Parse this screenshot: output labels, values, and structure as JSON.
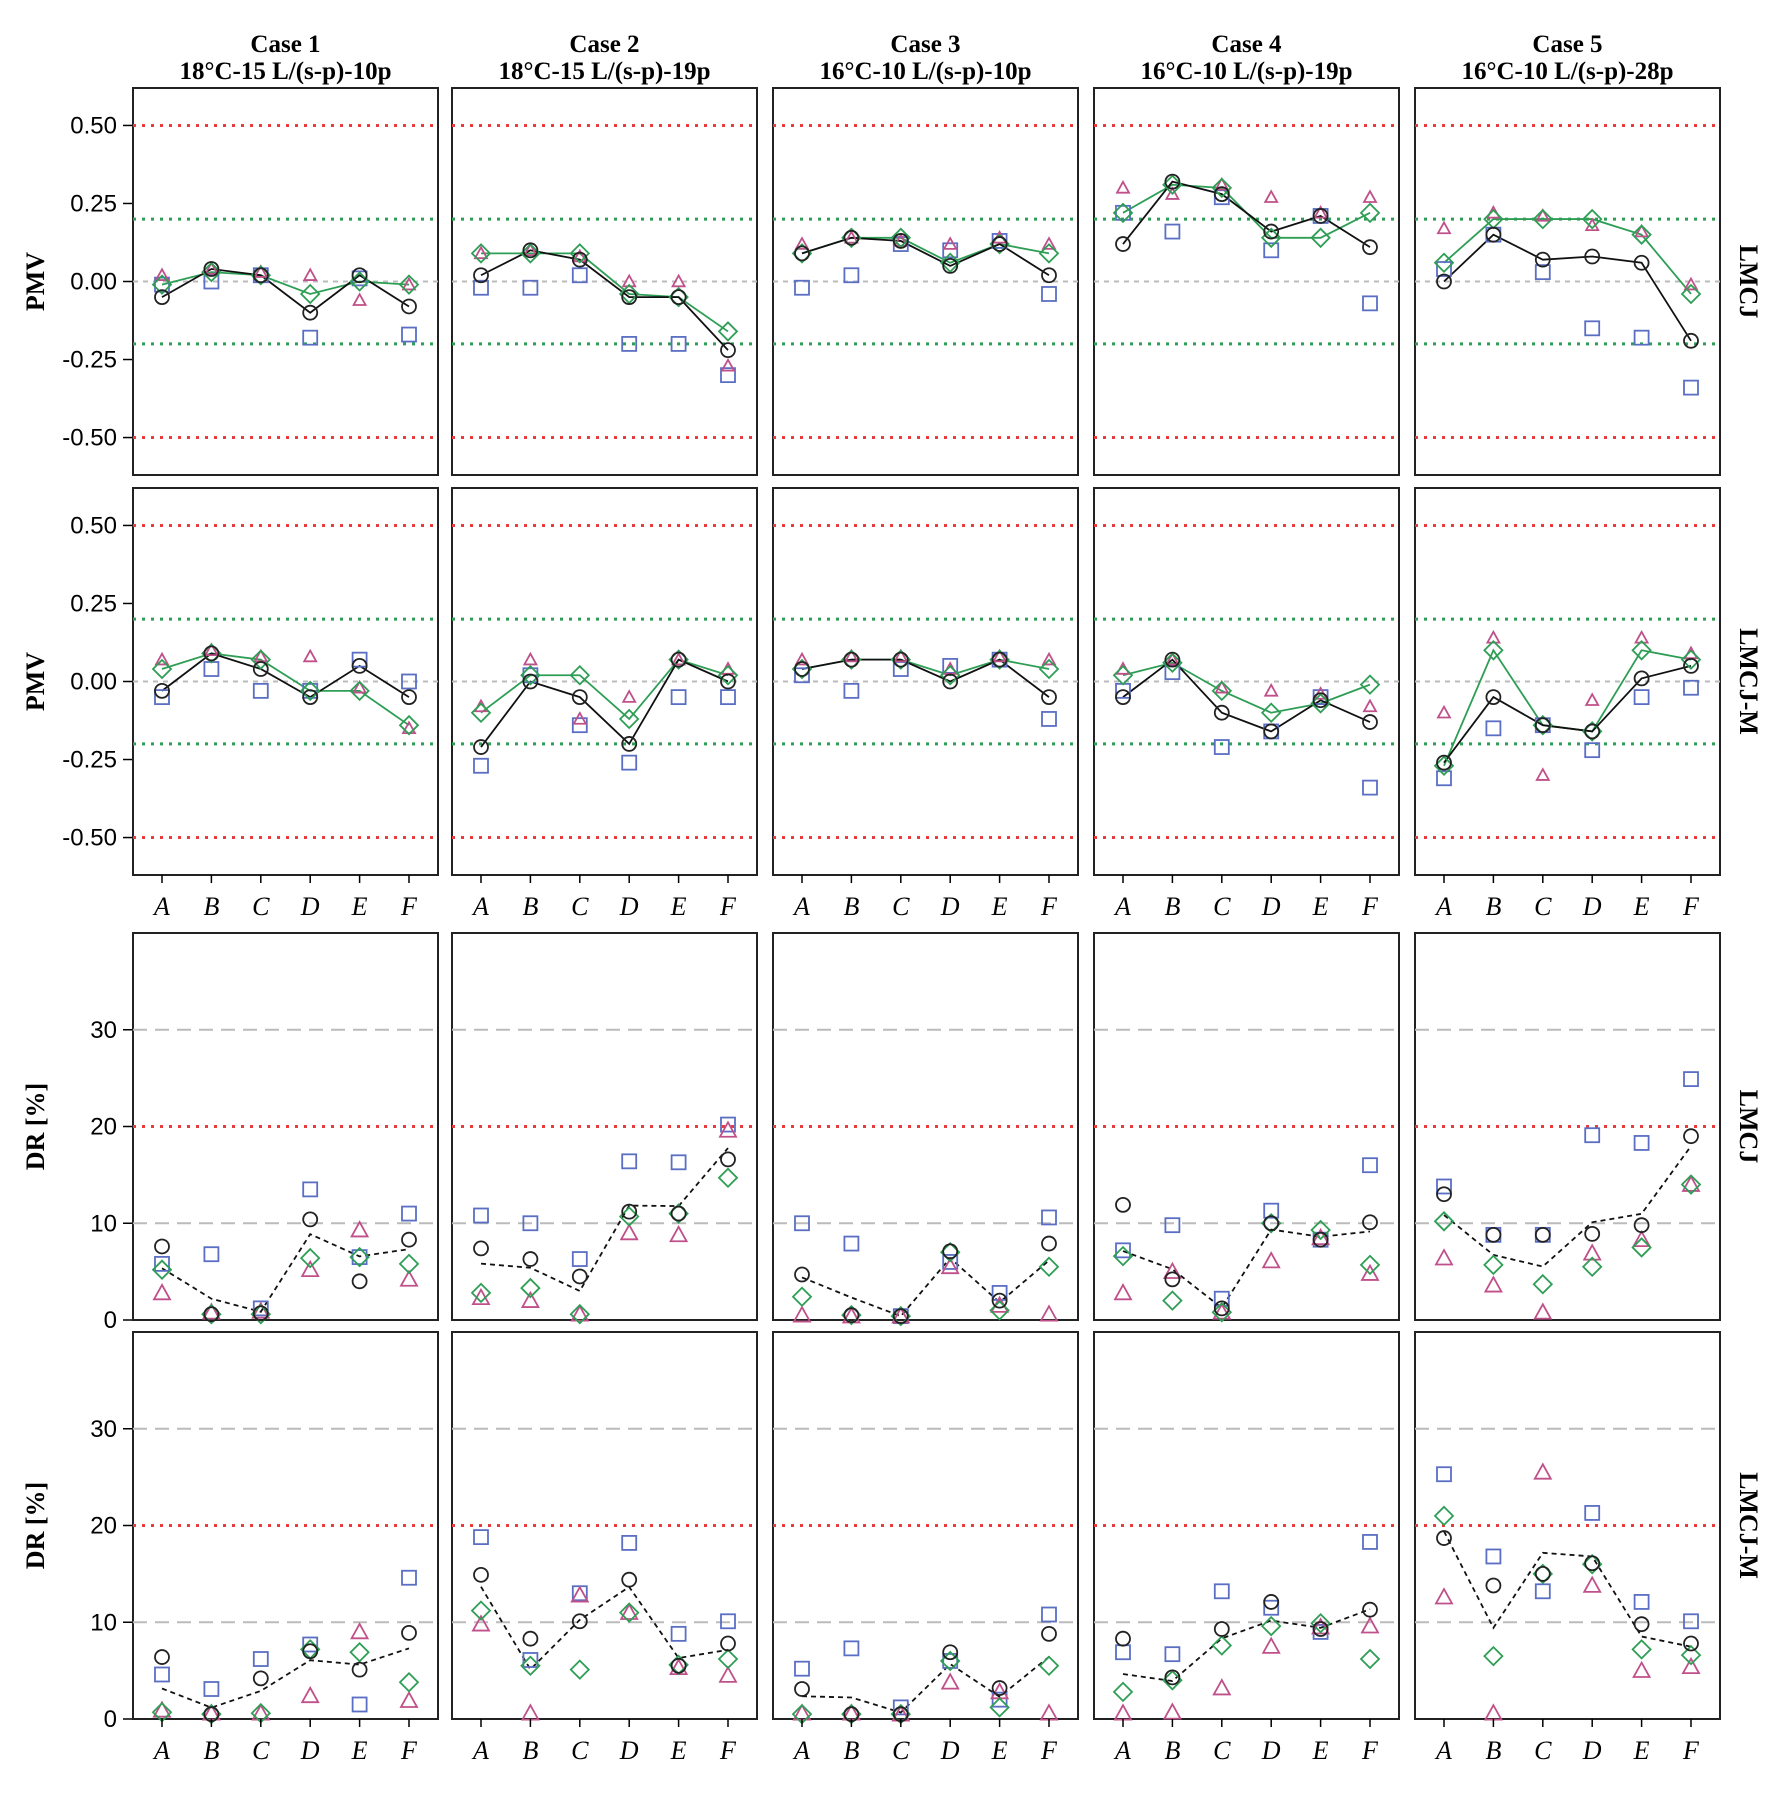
{
  "figure": {
    "cases": [
      {
        "title": "Case 1",
        "subtitle": "18°C-15 L/(s-p)-10p"
      },
      {
        "title": "Case 2",
        "subtitle": "18°C-15 L/(s-p)-19p"
      },
      {
        "title": "Case 3",
        "subtitle": "16°C-10 L/(s-p)-10p"
      },
      {
        "title": "Case 4",
        "subtitle": "16°C-10 L/(s-p)-19p"
      },
      {
        "title": "Case 5",
        "subtitle": "16°C-10 L/(s-p)-28p"
      }
    ],
    "rows": [
      {
        "ylabel": "PMV",
        "row_label": "LMCJ"
      },
      {
        "ylabel": "PMV",
        "row_label": "LMCJ-M"
      },
      {
        "ylabel": "DR [%]",
        "row_label": "LMCJ"
      },
      {
        "ylabel": "DR [%]",
        "row_label": "LMCJ-M"
      }
    ],
    "colors": {
      "circle": "#222222",
      "square": "#5a6fc4",
      "triangle": "#c0508a",
      "diamond": "#2e9e55",
      "red_ref": "#e83c3c",
      "green_ref": "#2e9e55",
      "gray_ref": "#bbbbbb"
    }
  },
  "chart_data": [
    {
      "type": "scatter",
      "row": 0,
      "quantity": "PMV",
      "ylim": [
        -0.62,
        0.62
      ],
      "yticks": [
        0.5,
        0.25,
        0,
        -0.25,
        -0.5
      ],
      "ytick_labels": [
        "0.50",
        "0.25",
        "0.00",
        "-0.25",
        "-0.50"
      ],
      "reference_lines": {
        "red": [
          0.5,
          -0.5
        ],
        "green": [
          0.2,
          -0.2
        ],
        "gray": [
          0
        ]
      },
      "categories": [
        "A",
        "B",
        "C",
        "D",
        "E",
        "F"
      ],
      "panels": [
        {
          "circle": [
            -0.05,
            0.04,
            0.02,
            -0.1,
            0.02,
            -0.08
          ],
          "square": [
            -0.01,
            0.0,
            0.02,
            -0.18,
            0.01,
            -0.17
          ],
          "triangle": [
            0.02,
            0.04,
            0.03,
            0.02,
            -0.06,
            -0.01
          ],
          "diamond": [
            -0.01,
            0.03,
            0.02,
            -0.04,
            0.0,
            -0.01
          ]
        },
        {
          "circle": [
            0.02,
            0.1,
            0.07,
            -0.05,
            -0.05,
            -0.22
          ],
          "square": [
            -0.02,
            -0.02,
            0.02,
            -0.2,
            -0.2,
            -0.3
          ],
          "triangle": [
            0.09,
            0.1,
            0.08,
            0.0,
            0.0,
            -0.27
          ],
          "diamond": [
            0.09,
            0.09,
            0.09,
            -0.04,
            -0.05,
            -0.16
          ]
        },
        {
          "circle": [
            0.09,
            0.14,
            0.13,
            0.05,
            0.12,
            0.02
          ],
          "square": [
            -0.02,
            0.02,
            0.12,
            0.1,
            0.13,
            -0.04
          ],
          "triangle": [
            0.12,
            0.14,
            0.13,
            0.12,
            0.14,
            0.12
          ],
          "diamond": [
            0.09,
            0.14,
            0.14,
            0.06,
            0.12,
            0.09
          ]
        },
        {
          "circle": [
            0.12,
            0.32,
            0.28,
            0.16,
            0.21,
            0.11
          ],
          "square": [
            0.22,
            0.16,
            0.27,
            0.1,
            0.21,
            -0.07
          ],
          "triangle": [
            0.3,
            0.28,
            0.31,
            0.27,
            0.22,
            0.27
          ],
          "diamond": [
            0.22,
            0.31,
            0.3,
            0.14,
            0.14,
            0.22
          ]
        },
        {
          "circle": [
            0.0,
            0.15,
            0.07,
            0.08,
            0.06,
            -0.19
          ],
          "square": [
            0.04,
            0.15,
            0.03,
            -0.15,
            -0.18,
            -0.34
          ],
          "triangle": [
            0.17,
            0.22,
            0.21,
            0.18,
            0.16,
            -0.01
          ],
          "diamond": [
            0.06,
            0.2,
            0.2,
            0.2,
            0.15,
            -0.04
          ]
        }
      ]
    },
    {
      "type": "scatter",
      "row": 1,
      "quantity": "PMV",
      "ylim": [
        -0.62,
        0.62
      ],
      "yticks": [
        0.5,
        0.25,
        0,
        -0.25,
        -0.5
      ],
      "ytick_labels": [
        "0.50",
        "0.25",
        "0.00",
        "-0.25",
        "-0.50"
      ],
      "reference_lines": {
        "red": [
          0.5,
          -0.5
        ],
        "green": [
          0.2,
          -0.2
        ],
        "gray": [
          0
        ]
      },
      "categories": [
        "A",
        "B",
        "C",
        "D",
        "E",
        "F"
      ],
      "panels": [
        {
          "circle": [
            -0.03,
            0.09,
            0.04,
            -0.05,
            0.05,
            -0.05
          ],
          "square": [
            -0.05,
            0.04,
            -0.03,
            -0.03,
            0.07,
            0.0
          ],
          "triangle": [
            0.07,
            0.1,
            0.08,
            0.08,
            -0.02,
            -0.15
          ],
          "diamond": [
            0.04,
            0.09,
            0.07,
            -0.03,
            -0.03,
            -0.14
          ]
        },
        {
          "circle": [
            -0.21,
            0.0,
            -0.05,
            -0.2,
            0.07,
            0.0
          ],
          "square": [
            -0.27,
            0.02,
            -0.14,
            -0.26,
            -0.05,
            -0.05
          ],
          "triangle": [
            -0.08,
            0.07,
            -0.12,
            -0.05,
            0.07,
            0.04
          ],
          "diamond": [
            -0.1,
            0.02,
            0.02,
            -0.12,
            0.07,
            0.02
          ]
        },
        {
          "circle": [
            0.04,
            0.07,
            0.07,
            0.0,
            0.07,
            -0.05
          ],
          "square": [
            0.02,
            -0.03,
            0.04,
            0.05,
            0.07,
            -0.12
          ],
          "triangle": [
            0.07,
            0.08,
            0.08,
            0.04,
            0.08,
            0.07
          ],
          "diamond": [
            0.04,
            0.07,
            0.07,
            0.02,
            0.07,
            0.04
          ]
        },
        {
          "circle": [
            -0.05,
            0.07,
            -0.1,
            -0.16,
            -0.06,
            -0.13
          ],
          "square": [
            -0.03,
            0.03,
            -0.21,
            -0.16,
            -0.05,
            -0.34
          ],
          "triangle": [
            0.04,
            0.07,
            -0.02,
            -0.03,
            -0.04,
            -0.08
          ],
          "diamond": [
            0.02,
            0.06,
            -0.03,
            -0.1,
            -0.07,
            -0.01
          ]
        },
        {
          "circle": [
            -0.26,
            -0.05,
            -0.14,
            -0.16,
            0.01,
            0.05
          ],
          "square": [
            -0.31,
            -0.15,
            -0.14,
            -0.22,
            -0.05,
            -0.02
          ],
          "triangle": [
            -0.1,
            0.14,
            -0.3,
            -0.06,
            0.14,
            0.09
          ],
          "diamond": [
            -0.27,
            0.1,
            -0.14,
            -0.16,
            0.1,
            0.07
          ]
        }
      ]
    },
    {
      "type": "scatter",
      "row": 2,
      "quantity": "DR [%]",
      "ylim": [
        0,
        40
      ],
      "yticks": [
        30,
        20,
        10,
        0
      ],
      "ytick_labels": [
        "30",
        "20",
        "10",
        "0"
      ],
      "reference_lines": {
        "red": [
          20
        ],
        "gray": [
          30,
          10
        ]
      },
      "categories": [
        "A",
        "B",
        "C",
        "D",
        "E",
        "F"
      ],
      "panels": [
        {
          "circle": [
            7.6,
            0.6,
            0.7,
            10.4,
            4.0,
            8.3
          ],
          "square": [
            5.8,
            6.8,
            1.2,
            13.5,
            6.5,
            11.0
          ],
          "triangle": [
            2.8,
            0.8,
            0.9,
            5.2,
            9.3,
            4.2
          ],
          "diamond": [
            5.2,
            0.6,
            0.6,
            6.4,
            6.5,
            5.8
          ]
        },
        {
          "circle": [
            7.4,
            6.3,
            4.5,
            11.2,
            11.0,
            16.6
          ],
          "square": [
            10.8,
            10.0,
            6.3,
            16.4,
            16.3,
            20.2
          ],
          "triangle": [
            2.3,
            2.0,
            0.6,
            9.0,
            8.8,
            19.6
          ],
          "diamond": [
            2.8,
            3.3,
            0.6,
            10.7,
            11.0,
            14.7
          ]
        },
        {
          "circle": [
            4.7,
            0.5,
            0.4,
            7.1,
            2.0,
            7.9
          ],
          "square": [
            10.0,
            7.9,
            0.4,
            6.0,
            2.8,
            10.6
          ],
          "triangle": [
            0.5,
            0.4,
            0.4,
            5.5,
            1.5,
            0.6
          ],
          "diamond": [
            2.4,
            0.5,
            0.4,
            7.0,
            1.0,
            5.5
          ]
        },
        {
          "circle": [
            11.9,
            4.2,
            1.2,
            10.0,
            8.3,
            10.1
          ],
          "square": [
            7.2,
            9.8,
            2.2,
            11.3,
            8.3,
            16.0
          ],
          "triangle": [
            2.8,
            5.0,
            0.8,
            6.1,
            8.5,
            4.8
          ],
          "diamond": [
            6.6,
            2.0,
            0.8,
            10.0,
            9.3,
            5.7
          ]
        },
        {
          "circle": [
            13.0,
            8.8,
            8.8,
            8.9,
            9.8,
            19.0
          ],
          "square": [
            13.8,
            8.8,
            8.8,
            19.1,
            18.3,
            24.9
          ],
          "triangle": [
            6.4,
            3.6,
            0.8,
            6.9,
            8.3,
            14.0
          ],
          "diamond": [
            10.2,
            5.7,
            3.7,
            5.5,
            7.5,
            14.0
          ]
        }
      ]
    },
    {
      "type": "scatter",
      "row": 3,
      "quantity": "DR [%]",
      "ylim": [
        0,
        40
      ],
      "yticks": [
        30,
        20,
        10,
        0
      ],
      "ytick_labels": [
        "30",
        "20",
        "10",
        "0"
      ],
      "reference_lines": {
        "red": [
          20
        ],
        "gray": [
          30,
          10
        ]
      },
      "categories": [
        "A",
        "B",
        "C",
        "D",
        "E",
        "F"
      ],
      "panels": [
        {
          "circle": [
            6.4,
            0.5,
            4.2,
            7.0,
            5.1,
            8.9
          ],
          "square": [
            4.6,
            3.1,
            6.2,
            7.7,
            1.5,
            14.6
          ],
          "triangle": [
            0.9,
            0.6,
            0.6,
            2.4,
            9.0,
            1.9
          ],
          "diamond": [
            0.7,
            0.5,
            0.6,
            7.2,
            6.9,
            3.8
          ]
        },
        {
          "circle": [
            14.9,
            8.3,
            10.1,
            14.4,
            5.5,
            7.8
          ],
          "square": [
            18.8,
            6.1,
            13.0,
            18.2,
            8.8,
            10.1
          ],
          "triangle": [
            9.8,
            0.6,
            12.8,
            11.0,
            5.3,
            4.5
          ],
          "diamond": [
            11.2,
            5.5,
            5.1,
            11.0,
            5.6,
            6.2
          ]
        },
        {
          "circle": [
            3.1,
            0.5,
            0.5,
            6.9,
            3.2,
            8.8
          ],
          "square": [
            5.2,
            7.3,
            1.2,
            6.0,
            2.0,
            10.8
          ],
          "triangle": [
            0.6,
            0.6,
            0.5,
            3.8,
            2.8,
            0.6
          ],
          "diamond": [
            0.5,
            0.5,
            0.5,
            6.0,
            1.2,
            5.5
          ]
        },
        {
          "circle": [
            8.3,
            4.3,
            9.3,
            12.1,
            9.3,
            11.3
          ],
          "square": [
            6.9,
            6.7,
            13.2,
            11.5,
            9.0,
            18.3
          ],
          "triangle": [
            0.6,
            0.7,
            3.2,
            7.5,
            9.5,
            9.6
          ],
          "diamond": [
            2.8,
            4.0,
            7.6,
            9.6,
            9.9,
            6.2
          ]
        },
        {
          "circle": [
            18.7,
            13.8,
            15.0,
            16.1,
            9.8,
            7.8
          ],
          "square": [
            25.3,
            16.8,
            13.2,
            21.3,
            12.1,
            10.1
          ],
          "triangle": [
            12.6,
            0.6,
            25.5,
            13.8,
            5.0,
            5.4
          ],
          "diamond": [
            21.0,
            6.5,
            15.0,
            16.0,
            7.2,
            6.6
          ]
        }
      ]
    }
  ]
}
